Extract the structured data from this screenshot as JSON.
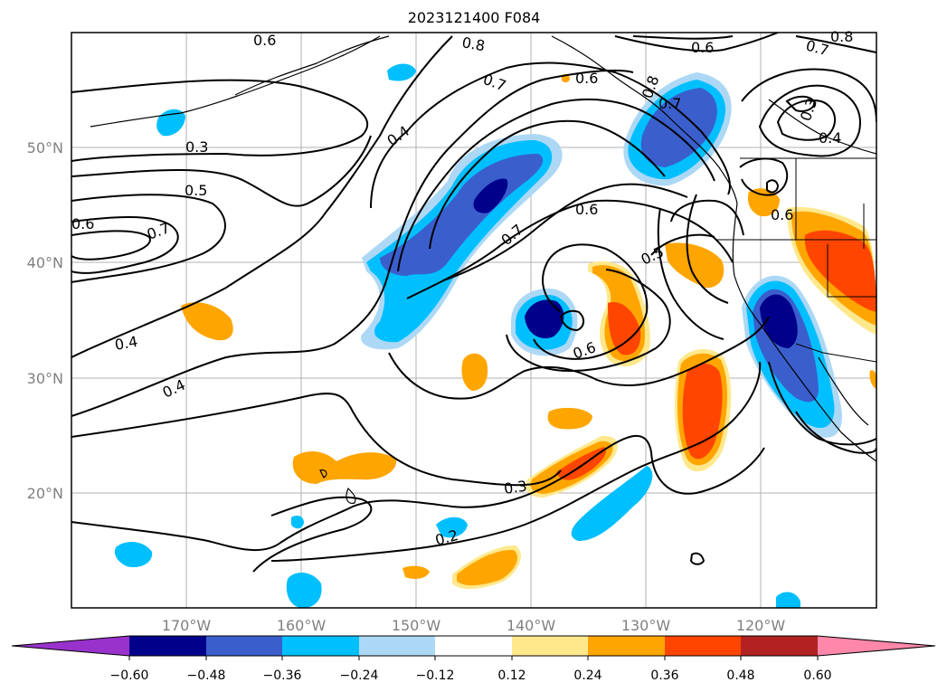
{
  "title": "2023121400 F084",
  "latitude_labels": [
    "50°N",
    "40°N",
    "30°N",
    "20°N"
  ],
  "longitude_labels": [
    "170°W",
    "160°W",
    "150°W",
    "140°W",
    "130°W",
    "120°W"
  ],
  "contour_labels": [
    "0.6",
    "0.8",
    "0.7",
    "0.6",
    "0.6",
    "0.7",
    "0.8",
    "0.3",
    "0.4",
    "0.3",
    "0.4",
    "0.5",
    "0.6",
    "0.7",
    "0.8",
    "0.7",
    "0.6",
    "0.7",
    "0.5",
    "0.6",
    "0.6",
    "0.4",
    "0.4",
    "0.3",
    "0.2"
  ],
  "colorbar": {
    "ticks": [
      "−0.60",
      "−0.48",
      "−0.36",
      "−0.24",
      "−0.12",
      "0.12",
      "0.24",
      "0.36",
      "0.48",
      "0.60"
    ],
    "colors": [
      "#9932cc",
      "#00008b",
      "#3a5fcd",
      "#00bfff",
      "#add8f5",
      "#ffffff",
      "#ffe88c",
      "#ffa500",
      "#ff4500",
      "#b22222",
      "#ff88aa"
    ]
  }
}
